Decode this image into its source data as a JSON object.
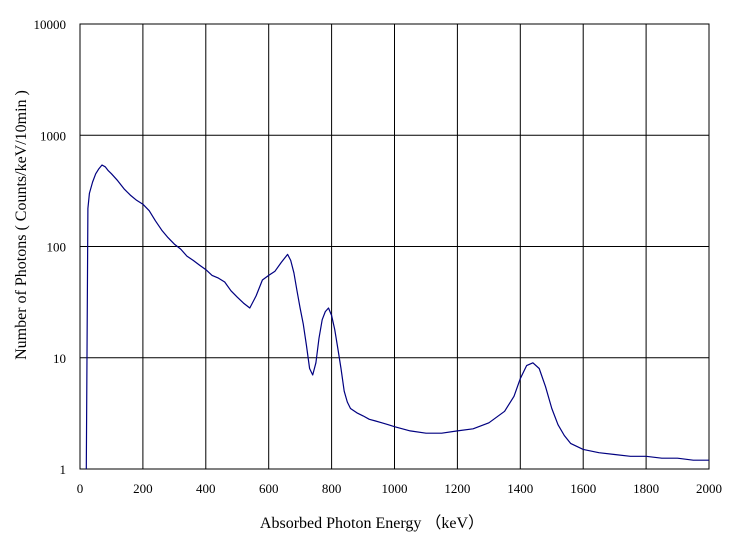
{
  "chart_data": {
    "type": "line",
    "title": "",
    "xlabel": "Absorbed Photon Energy （keV）",
    "ylabel": "Number of Photons ( Counts/keV/10min )",
    "xlim": [
      0,
      2000
    ],
    "ylim": [
      1,
      10000
    ],
    "yscale": "log",
    "grid": true,
    "legend": "none",
    "x_ticks": [
      "0",
      "200",
      "400",
      "600",
      "800",
      "1000",
      "1200",
      "1400",
      "1600",
      "1800",
      "2000"
    ],
    "y_ticks": [
      "1",
      "10",
      "100",
      "1000",
      "10000"
    ],
    "line_color": "#000080",
    "series": [
      {
        "x": [
          20,
          25,
          30,
          40,
          50,
          60,
          70,
          80,
          90,
          100,
          120,
          140,
          160,
          180,
          200,
          220,
          240,
          260,
          280,
          300,
          320,
          340,
          360,
          380,
          400,
          420,
          440,
          460,
          480,
          500,
          520,
          540,
          560,
          580,
          600,
          620,
          640,
          660,
          670,
          680,
          690,
          700,
          710,
          720,
          730,
          740,
          750,
          760,
          770,
          780,
          790,
          800,
          810,
          820,
          830,
          840,
          850,
          860,
          880,
          900,
          920,
          940,
          960,
          980,
          1000,
          1050,
          1100,
          1150,
          1200,
          1250,
          1300,
          1350,
          1380,
          1400,
          1420,
          1440,
          1460,
          1480,
          1500,
          1520,
          1540,
          1560,
          1600,
          1650,
          1700,
          1750,
          1800,
          1850,
          1900,
          1950,
          2000
        ],
        "y": [
          1,
          220,
          300,
          380,
          450,
          500,
          540,
          520,
          480,
          450,
          390,
          330,
          290,
          260,
          240,
          210,
          170,
          140,
          120,
          105,
          95,
          82,
          75,
          68,
          62,
          55,
          52,
          48,
          40,
          35,
          31,
          28,
          36,
          50,
          55,
          60,
          72,
          85,
          75,
          58,
          40,
          28,
          20,
          13,
          8,
          7,
          9,
          15,
          22,
          26,
          28,
          24,
          18,
          12,
          8,
          5,
          4,
          3.5,
          3.2,
          3,
          2.8,
          2.7,
          2.6,
          2.5,
          2.4,
          2.2,
          2.1,
          2.1,
          2.2,
          2.3,
          2.6,
          3.3,
          4.5,
          6.5,
          8.5,
          9,
          8,
          5.5,
          3.5,
          2.5,
          2,
          1.7,
          1.5,
          1.4,
          1.35,
          1.3,
          1.3,
          1.25,
          1.25,
          1.2,
          1.2
        ]
      }
    ]
  }
}
